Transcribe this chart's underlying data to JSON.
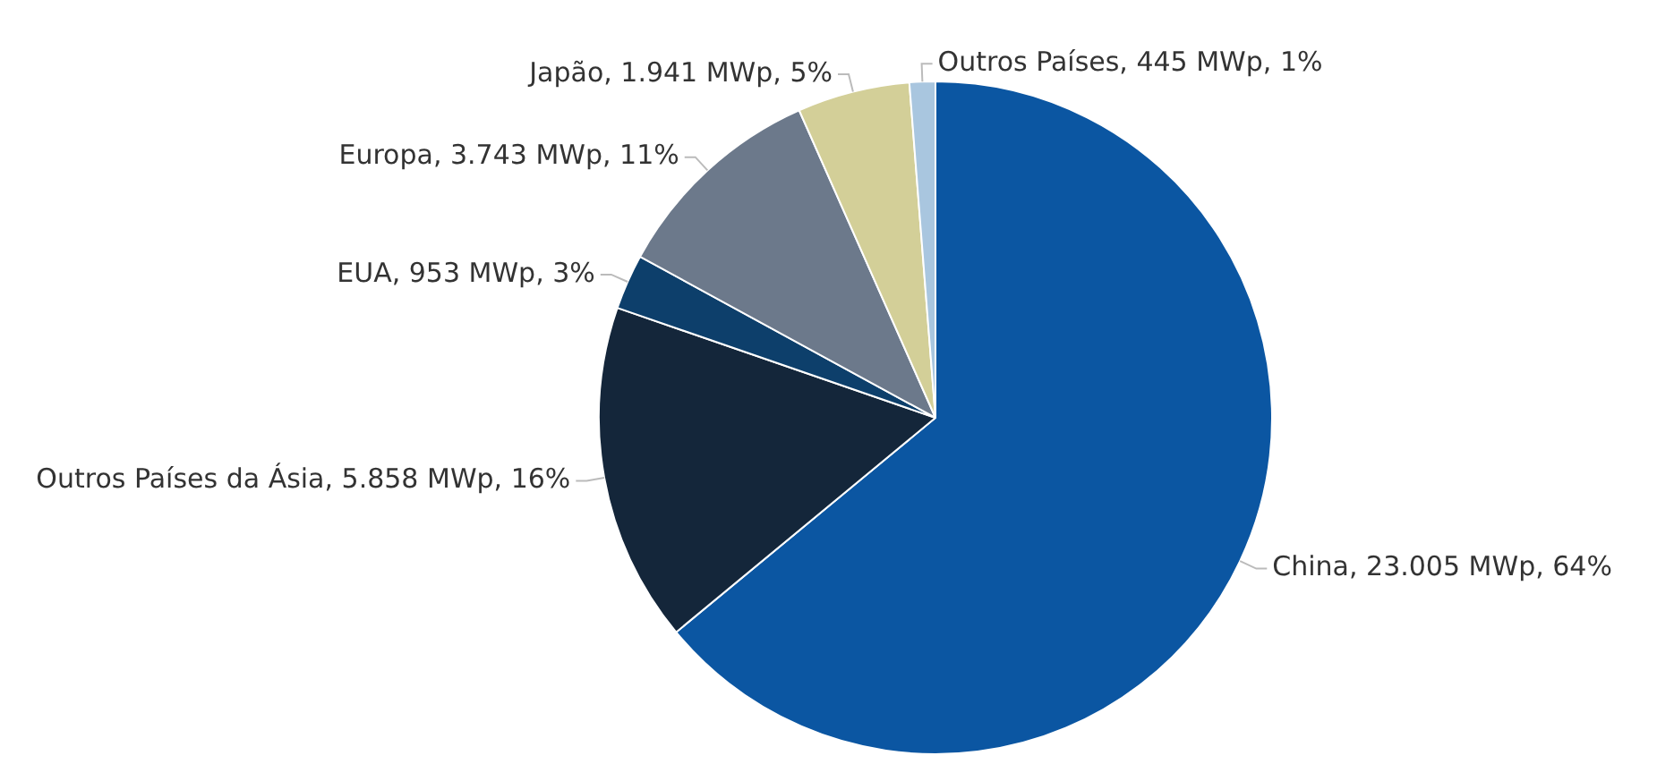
{
  "chart_data": {
    "type": "pie",
    "categories": [
      "China",
      "Outros Países da Ásia",
      "EUA",
      "Europa",
      "Japão",
      "Outros Países"
    ],
    "values": [
      23005,
      5858,
      953,
      3743,
      1941,
      445
    ],
    "value_labels": [
      "23.005 MWp, 64%",
      "5.858 MWp, 16%",
      "953 MWp, 3%",
      "3.743 MWp, 11%",
      "1.941 MWp, 5%",
      "445 MWp, 1%"
    ],
    "colors": [
      "#0b56a2",
      "#14263a",
      "#0d3f6b",
      "#6c798b",
      "#d3cf98",
      "#a9c6df"
    ],
    "legend": false
  }
}
